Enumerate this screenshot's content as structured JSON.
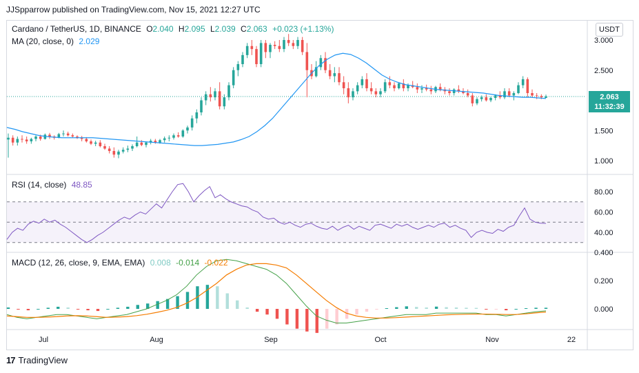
{
  "header": {
    "published": "JJSpparrow published on TradingView.com, Nov 15, 2021 12:27 UTC"
  },
  "footer": {
    "brand": "TradingView",
    "logo": "17"
  },
  "colors": {
    "up": "#26a69a",
    "down": "#ef5350",
    "ma": "#2196f3",
    "rsi": "#7e57c2",
    "macd": "#43a047",
    "signal": "#f57c00",
    "hist_up": "#26a69a",
    "hist_down": "#ef5350"
  },
  "price_pane": {
    "symbol": "Cardano / TetherUS, 1D, BINANCE",
    "o_label": "O",
    "o": "2.040",
    "h_label": "H",
    "h": "2.095",
    "l_label": "L",
    "l": "2.039",
    "c_label": "C",
    "c": "2.063",
    "change": "+0.023 (+1.13%)",
    "ma_label": "MA (20, close, 0)",
    "ma_value": "2.029",
    "unit": "USDT",
    "last_price": "2.063",
    "countdown": "11:32:39",
    "ticks": [
      "3.000",
      "2.500",
      "2.000",
      "1.500",
      "1.000"
    ]
  },
  "rsi_pane": {
    "label": "RSI (14, close)",
    "value": "48.85",
    "ticks": [
      "80.00",
      "60.00",
      "40.00"
    ],
    "band": [
      30,
      70
    ],
    "mid": 50
  },
  "macd_pane": {
    "label": "MACD (12, 26, close, 9, EMA, EMA)",
    "hist": "0.008",
    "macd": "-0.014",
    "signal": "-0.022",
    "ticks": [
      "0.400",
      "0.200",
      "0.000"
    ]
  },
  "x_axis": {
    "ticks": [
      "Jul",
      "Aug",
      "Sep",
      "Oct",
      "Nov",
      "22"
    ]
  },
  "chart_data": {
    "type": "candlestick",
    "title": "Cardano / TetherUS, 1D, BINANCE",
    "x_start": "2021-06-21",
    "x_ticks": [
      "Jul",
      "Aug",
      "Sep",
      "Oct",
      "Nov",
      "22"
    ],
    "ohlc": [
      [
        1.35,
        1.45,
        1.05,
        1.38
      ],
      [
        1.38,
        1.42,
        1.25,
        1.3
      ],
      [
        1.3,
        1.4,
        1.25,
        1.36
      ],
      [
        1.36,
        1.42,
        1.3,
        1.35
      ],
      [
        1.35,
        1.4,
        1.28,
        1.32
      ],
      [
        1.32,
        1.38,
        1.28,
        1.36
      ],
      [
        1.36,
        1.42,
        1.32,
        1.4
      ],
      [
        1.4,
        1.43,
        1.33,
        1.36
      ],
      [
        1.36,
        1.45,
        1.35,
        1.43
      ],
      [
        1.43,
        1.46,
        1.36,
        1.4
      ],
      [
        1.4,
        1.42,
        1.35,
        1.38
      ],
      [
        1.38,
        1.46,
        1.37,
        1.44
      ],
      [
        1.44,
        1.5,
        1.4,
        1.45
      ],
      [
        1.45,
        1.48,
        1.4,
        1.42
      ],
      [
        1.42,
        1.45,
        1.38,
        1.4
      ],
      [
        1.4,
        1.42,
        1.36,
        1.38
      ],
      [
        1.38,
        1.41,
        1.32,
        1.36
      ],
      [
        1.36,
        1.39,
        1.3,
        1.32
      ],
      [
        1.32,
        1.35,
        1.26,
        1.28
      ],
      [
        1.28,
        1.33,
        1.24,
        1.3
      ],
      [
        1.3,
        1.34,
        1.22,
        1.24
      ],
      [
        1.24,
        1.28,
        1.18,
        1.2
      ],
      [
        1.2,
        1.24,
        1.12,
        1.16
      ],
      [
        1.16,
        1.22,
        1.05,
        1.1
      ],
      [
        1.1,
        1.18,
        1.04,
        1.15
      ],
      [
        1.15,
        1.22,
        1.12,
        1.18
      ],
      [
        1.18,
        1.25,
        1.14,
        1.2
      ],
      [
        1.2,
        1.27,
        1.16,
        1.24
      ],
      [
        1.24,
        1.4,
        1.22,
        1.3
      ],
      [
        1.3,
        1.34,
        1.24,
        1.26
      ],
      [
        1.26,
        1.32,
        1.22,
        1.3
      ],
      [
        1.3,
        1.36,
        1.27,
        1.33
      ],
      [
        1.33,
        1.36,
        1.28,
        1.3
      ],
      [
        1.3,
        1.36,
        1.28,
        1.34
      ],
      [
        1.34,
        1.4,
        1.3,
        1.37
      ],
      [
        1.37,
        1.42,
        1.32,
        1.38
      ],
      [
        1.38,
        1.45,
        1.35,
        1.42
      ],
      [
        1.42,
        1.47,
        1.38,
        1.4
      ],
      [
        1.4,
        1.52,
        1.38,
        1.5
      ],
      [
        1.5,
        1.58,
        1.45,
        1.55
      ],
      [
        1.55,
        1.75,
        1.5,
        1.7
      ],
      [
        1.7,
        1.85,
        1.62,
        1.8
      ],
      [
        1.8,
        2.05,
        1.75,
        2.0
      ],
      [
        2.0,
        2.15,
        1.92,
        2.1
      ],
      [
        2.1,
        2.22,
        1.98,
        2.05
      ],
      [
        2.05,
        2.2,
        2.0,
        2.15
      ],
      [
        2.15,
        2.3,
        1.85,
        1.9
      ],
      [
        1.9,
        2.1,
        1.85,
        2.05
      ],
      [
        2.05,
        2.3,
        2.0,
        2.25
      ],
      [
        2.25,
        2.55,
        2.2,
        2.5
      ],
      [
        2.5,
        2.65,
        2.4,
        2.6
      ],
      [
        2.6,
        2.8,
        2.55,
        2.75
      ],
      [
        2.75,
        2.95,
        2.7,
        2.9
      ],
      [
        2.9,
        3.0,
        2.75,
        2.85
      ],
      [
        2.85,
        2.9,
        2.55,
        2.6
      ],
      [
        2.6,
        3.0,
        2.55,
        2.95
      ],
      [
        2.95,
        3.0,
        2.7,
        2.8
      ],
      [
        2.8,
        2.95,
        2.7,
        2.92
      ],
      [
        2.92,
        2.98,
        2.85,
        2.9
      ],
      [
        2.9,
        3.0,
        2.8,
        2.85
      ],
      [
        2.85,
        3.05,
        2.8,
        3.0
      ],
      [
        3.0,
        3.1,
        2.9,
        2.95
      ],
      [
        2.95,
        3.0,
        2.85,
        2.9
      ],
      [
        2.9,
        3.05,
        2.85,
        3.0
      ],
      [
        3.0,
        3.05,
        2.75,
        2.8
      ],
      [
        2.8,
        2.95,
        2.05,
        2.5
      ],
      [
        2.5,
        2.6,
        2.35,
        2.4
      ],
      [
        2.4,
        2.65,
        2.38,
        2.55
      ],
      [
        2.55,
        2.75,
        2.5,
        2.7
      ],
      [
        2.7,
        2.8,
        2.45,
        2.5
      ],
      [
        2.5,
        2.6,
        2.35,
        2.4
      ],
      [
        2.4,
        2.55,
        2.3,
        2.45
      ],
      [
        2.45,
        2.55,
        2.25,
        2.3
      ],
      [
        2.3,
        2.4,
        2.1,
        2.2
      ],
      [
        2.2,
        2.3,
        1.95,
        2.05
      ],
      [
        2.05,
        2.2,
        2.0,
        2.15
      ],
      [
        2.15,
        2.3,
        2.1,
        2.25
      ],
      [
        2.25,
        2.4,
        2.2,
        2.35
      ],
      [
        2.35,
        2.45,
        2.15,
        2.2
      ],
      [
        2.2,
        2.3,
        2.1,
        2.15
      ],
      [
        2.15,
        2.2,
        2.05,
        2.1
      ],
      [
        2.1,
        2.2,
        2.05,
        2.15
      ],
      [
        2.15,
        2.35,
        2.12,
        2.3
      ],
      [
        2.3,
        2.4,
        2.2,
        2.25
      ],
      [
        2.25,
        2.3,
        2.15,
        2.2
      ],
      [
        2.2,
        2.3,
        2.18,
        2.28
      ],
      [
        2.28,
        2.35,
        2.15,
        2.2
      ],
      [
        2.2,
        2.28,
        2.15,
        2.25
      ],
      [
        2.25,
        2.32,
        2.2,
        2.22
      ],
      [
        2.22,
        2.28,
        2.12,
        2.18
      ],
      [
        2.18,
        2.25,
        2.12,
        2.2
      ],
      [
        2.2,
        2.26,
        2.15,
        2.18
      ],
      [
        2.18,
        2.24,
        2.1,
        2.15
      ],
      [
        2.15,
        2.24,
        2.12,
        2.22
      ],
      [
        2.22,
        2.28,
        2.15,
        2.18
      ],
      [
        2.18,
        2.22,
        2.1,
        2.15
      ],
      [
        2.15,
        2.2,
        2.08,
        2.12
      ],
      [
        2.12,
        2.2,
        2.08,
        2.18
      ],
      [
        2.18,
        2.25,
        2.12,
        2.15
      ],
      [
        2.15,
        2.2,
        2.1,
        2.12
      ],
      [
        2.12,
        2.18,
        2.05,
        2.08
      ],
      [
        2.08,
        2.12,
        1.9,
        1.95
      ],
      [
        1.95,
        2.05,
        1.92,
        2.02
      ],
      [
        2.02,
        2.08,
        1.98,
        2.05
      ],
      [
        2.05,
        2.1,
        1.98,
        2.0
      ],
      [
        2.0,
        2.06,
        1.97,
        2.04
      ],
      [
        2.04,
        2.1,
        2.0,
        2.08
      ],
      [
        2.08,
        2.15,
        2.02,
        2.05
      ],
      [
        2.05,
        2.2,
        2.02,
        2.15
      ],
      [
        2.15,
        2.2,
        2.05,
        2.08
      ],
      [
        2.08,
        2.15,
        2.0,
        2.12
      ],
      [
        2.12,
        2.3,
        2.1,
        2.25
      ],
      [
        2.25,
        2.4,
        2.2,
        2.35
      ],
      [
        2.35,
        2.38,
        2.05,
        2.12
      ],
      [
        2.12,
        2.18,
        2.05,
        2.08
      ],
      [
        2.08,
        2.12,
        2.02,
        2.07
      ],
      [
        2.07,
        2.1,
        2.02,
        2.05
      ],
      [
        2.04,
        2.095,
        2.039,
        2.063
      ]
    ],
    "ma": [
      1.55,
      1.52,
      1.48,
      1.45,
      1.42,
      1.4,
      1.39,
      1.38,
      1.38,
      1.38,
      1.38,
      1.38,
      1.37,
      1.36,
      1.35,
      1.34,
      1.33,
      1.32,
      1.31,
      1.3,
      1.29,
      1.28,
      1.27,
      1.26,
      1.25,
      1.25,
      1.26,
      1.27,
      1.29,
      1.31,
      1.35,
      1.4,
      1.48,
      1.58,
      1.7,
      1.85,
      2.0,
      2.15,
      2.3,
      2.45,
      2.58,
      2.68,
      2.75,
      2.78,
      2.76,
      2.7,
      2.62,
      2.52,
      2.42,
      2.35,
      2.3,
      2.26,
      2.24,
      2.22,
      2.2,
      2.18,
      2.17,
      2.16,
      2.15,
      2.14,
      2.13,
      2.12,
      2.1,
      2.08,
      2.07,
      2.06,
      2.05,
      2.05,
      2.04,
      2.03
    ],
    "rsi": [
      33,
      40,
      44,
      42,
      48,
      51,
      49,
      53,
      50,
      52,
      48,
      45,
      41,
      37,
      33,
      30,
      33,
      37,
      40,
      44,
      48,
      52,
      55,
      53,
      57,
      60,
      58,
      63,
      68,
      64,
      72,
      80,
      87,
      88,
      80,
      70,
      76,
      81,
      85,
      74,
      77,
      73,
      70,
      68,
      66,
      65,
      62,
      60,
      55,
      53,
      54,
      50,
      48,
      50,
      47,
      45,
      48,
      49,
      46,
      44,
      43,
      46,
      42,
      45,
      47,
      43,
      46,
      44,
      42,
      47,
      48,
      46,
      44,
      48,
      46,
      48,
      45,
      43,
      45,
      47,
      45,
      48,
      49,
      45,
      47,
      44,
      42,
      35,
      40,
      42,
      40,
      39,
      43,
      41,
      45,
      47,
      56,
      64,
      53,
      50,
      49,
      48.85
    ],
    "macd": [
      -0.04,
      -0.06,
      -0.07,
      -0.06,
      -0.05,
      -0.04,
      -0.04,
      -0.05,
      -0.06,
      -0.07,
      -0.06,
      -0.05,
      -0.04,
      -0.02,
      0.0,
      0.03,
      0.06,
      0.1,
      0.16,
      0.24,
      0.3,
      0.34,
      0.35,
      0.34,
      0.32,
      0.3,
      0.28,
      0.24,
      0.18,
      0.1,
      0.02,
      -0.05,
      -0.08,
      -0.1,
      -0.1,
      -0.09,
      -0.08,
      -0.07,
      -0.06,
      -0.05,
      -0.04,
      -0.04,
      -0.04,
      -0.03,
      -0.03,
      -0.03,
      -0.03,
      -0.03,
      -0.04,
      -0.04,
      -0.05,
      -0.04,
      -0.03,
      -0.02,
      -0.014
    ],
    "signal": [
      -0.05,
      -0.055,
      -0.06,
      -0.06,
      -0.058,
      -0.055,
      -0.05,
      -0.048,
      -0.05,
      -0.055,
      -0.06,
      -0.058,
      -0.055,
      -0.048,
      -0.038,
      -0.025,
      -0.01,
      0.01,
      0.04,
      0.08,
      0.13,
      0.18,
      0.24,
      0.28,
      0.31,
      0.32,
      0.32,
      0.31,
      0.29,
      0.24,
      0.18,
      0.12,
      0.06,
      0.01,
      -0.03,
      -0.05,
      -0.06,
      -0.065,
      -0.065,
      -0.062,
      -0.058,
      -0.054,
      -0.05,
      -0.046,
      -0.042,
      -0.04,
      -0.038,
      -0.037,
      -0.037,
      -0.038,
      -0.04,
      -0.04,
      -0.035,
      -0.028,
      -0.022
    ],
    "hist": [
      0.01,
      -0.005,
      -0.01,
      0.0,
      0.008,
      0.015,
      0.01,
      -0.002,
      -0.01,
      -0.015,
      0.0,
      0.008,
      0.015,
      0.028,
      0.038,
      0.055,
      0.07,
      0.09,
      0.12,
      0.16,
      0.17,
      0.16,
      0.11,
      0.06,
      0.01,
      -0.02,
      -0.04,
      -0.07,
      -0.11,
      -0.14,
      -0.16,
      -0.17,
      -0.14,
      -0.11,
      -0.07,
      -0.04,
      -0.02,
      -0.005,
      0.005,
      0.012,
      0.018,
      0.014,
      0.01,
      0.016,
      0.012,
      0.01,
      0.008,
      0.007,
      -0.003,
      -0.002,
      -0.01,
      0.0,
      0.005,
      0.008,
      0.008
    ]
  }
}
